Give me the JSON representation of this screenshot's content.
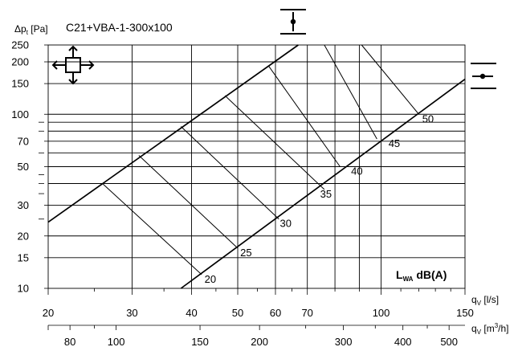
{
  "chart_data": {
    "type": "line",
    "title": "C21+VBA-1-300x100",
    "ylabel": {
      "main": "Δp",
      "sub": "t",
      "unit": " [Pa]"
    },
    "xlabel_ls": {
      "main": "q",
      "sub": "V",
      "unit": " [l/s]"
    },
    "xlabel_m3h": {
      "main": "q",
      "sub": "V",
      "unit": " [m",
      "sup": "3",
      "unit_end": "/h]"
    },
    "legend_label": {
      "main": "L",
      "sub": "WA",
      "unit": " dB(A)"
    },
    "yscale": "log",
    "xscale": "log",
    "ylim": [
      10,
      250
    ],
    "xlim": [
      20,
      150
    ],
    "grid": true,
    "y_ticks": [
      10,
      15,
      20,
      30,
      50,
      70,
      100,
      150,
      200,
      250
    ],
    "y_tick_labels": [
      "10",
      "15",
      "20",
      "30",
      "50",
      "70",
      "100",
      "150",
      "200",
      "250"
    ],
    "y_grid": [
      10,
      15,
      20,
      30,
      40,
      50,
      60,
      70,
      80,
      90,
      100,
      150,
      200
    ],
    "y_minor_ticks": [
      25,
      35,
      40,
      45,
      60,
      80,
      90
    ],
    "x_ticks_ls": [
      20,
      30,
      40,
      50,
      60,
      70,
      100,
      150
    ],
    "x_tick_labels_ls": [
      "20",
      "30",
      "40",
      "50",
      "60",
      "70",
      "100",
      "150"
    ],
    "x_grid_ls": [
      20,
      30,
      40,
      50,
      60,
      70,
      80,
      90,
      100,
      150
    ],
    "x_minor_ls": [
      25,
      35,
      45,
      55,
      65,
      80,
      90,
      110,
      120,
      130,
      140
    ],
    "x_ticks_m3h": [
      80,
      100,
      150,
      200,
      300,
      400,
      500
    ],
    "x_tick_labels_m3h": [
      "80",
      "100",
      "150",
      "200",
      "300",
      "400",
      "500"
    ],
    "x_minor_m3h": [
      90,
      250,
      350,
      450
    ],
    "upper_limit_line": {
      "x": [
        20,
        67
      ],
      "y": [
        24,
        250
      ]
    },
    "lower_limit_line": {
      "x": [
        38,
        150
      ],
      "y": [
        10,
        159
      ]
    },
    "sound_lines": [
      {
        "label": "20",
        "x": [
          26,
          42
        ],
        "y": [
          40,
          12
        ]
      },
      {
        "label": "25",
        "x": [
          31,
          50
        ],
        "y": [
          58,
          17
        ]
      },
      {
        "label": "30",
        "x": [
          38,
          61
        ],
        "y": [
          85,
          25
        ]
      },
      {
        "label": "35",
        "x": [
          47,
          76
        ],
        "y": [
          128,
          37
        ]
      },
      {
        "label": "40",
        "x": [
          58,
          82
        ],
        "y": [
          190,
          50
        ]
      },
      {
        "label": "45",
        "x": [
          76,
          98
        ],
        "y": [
          250,
          72
        ]
      },
      {
        "label": "50",
        "x": [
          91,
          120
        ],
        "y": [
          250,
          100
        ]
      }
    ],
    "sound_label_values": [
      [
        "20",
        12
      ],
      [
        "25",
        17
      ],
      [
        "30",
        25
      ],
      [
        "35",
        37
      ],
      [
        "40",
        50
      ],
      [
        "45",
        72
      ],
      [
        "50",
        100
      ]
    ]
  }
}
